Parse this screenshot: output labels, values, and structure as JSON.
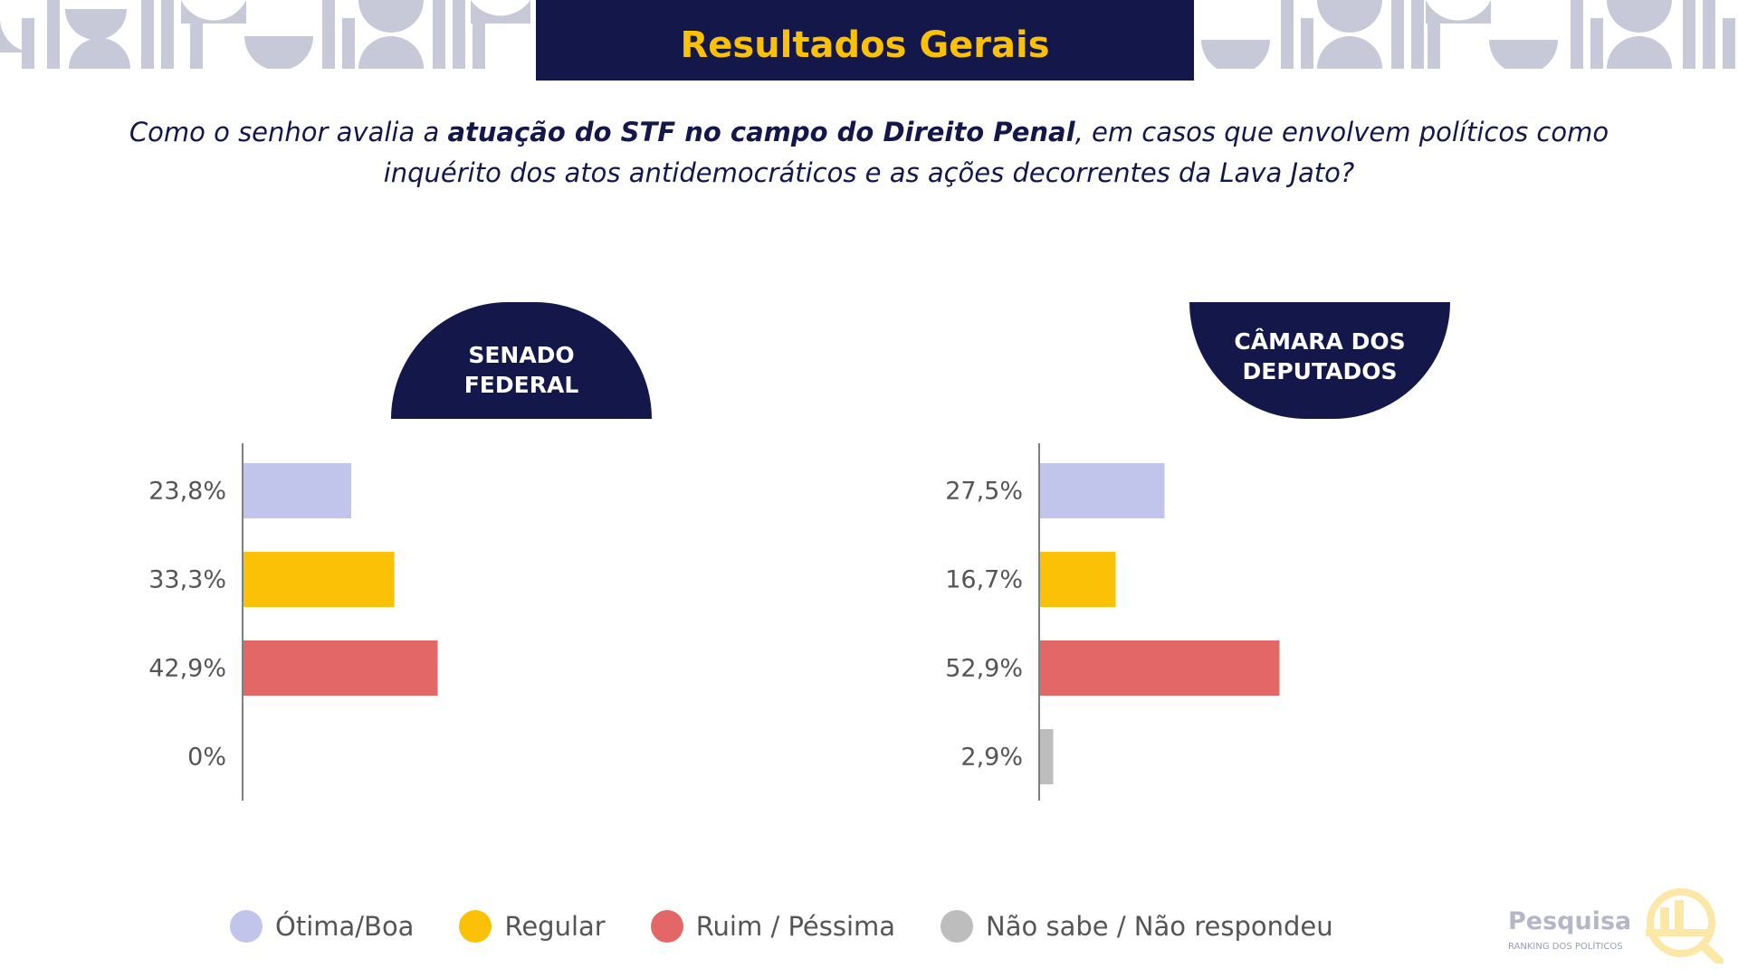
{
  "header": {
    "title": "Resultados Gerais"
  },
  "question": {
    "part1": "Como o senhor avalia a ",
    "bold": "atuação do STF no campo do Direito Penal",
    "part2": ", em casos que envolvem políticos como inquérito dos atos antidemocráticos e as ações decorrentes da Lava Jato?"
  },
  "badges": {
    "senado": {
      "line1": "SENADO",
      "line2": "FEDERAL"
    },
    "camara": {
      "line1": "CÂMARA DOS",
      "line2": "DEPUTADOS"
    }
  },
  "colors": {
    "navy": "#13174a",
    "yellow": "#fbc107",
    "lavender": "#c1c4eb",
    "red": "#e46767",
    "gray": "#bdbdbd"
  },
  "legend": [
    {
      "label": "Ótima/Boa",
      "color": "#c1c4eb"
    },
    {
      "label": "Regular",
      "color": "#fbc107"
    },
    {
      "label": "Ruim / Péssima",
      "color": "#e46767"
    },
    {
      "label": "Não sabe / Não respondeu",
      "color": "#bdbdbd"
    }
  ],
  "chart_data": [
    {
      "type": "bar",
      "orientation": "horizontal",
      "categories": [
        "Ótima/Boa",
        "Regular",
        "Ruim / Péssima",
        "Não sabe / Não respondeu"
      ],
      "values": [
        23.8,
        33.3,
        42.9,
        0
      ],
      "value_labels": [
        "23,8%",
        "33,3%",
        "42,9%",
        "0%"
      ],
      "colors": [
        "#c1c4eb",
        "#fbc107",
        "#e46767",
        "#bdbdbd"
      ],
      "xlim": [
        0,
        100
      ]
    },
    {
      "type": "bar",
      "orientation": "horizontal",
      "categories": [
        "Ótima/Boa",
        "Regular",
        "Ruim / Péssima",
        "Não sabe / Não respondeu"
      ],
      "values": [
        27.5,
        16.7,
        52.9,
        2.9
      ],
      "value_labels": [
        "27,5%",
        "16,7%",
        "52,9%",
        "2,9%"
      ],
      "colors": [
        "#c1c4eb",
        "#fbc107",
        "#e46767",
        "#bdbdbd"
      ],
      "xlim": [
        0,
        100
      ]
    }
  ],
  "logo": {
    "name": "Pesquisa",
    "sub": "RANKING DOS POLÍTICOS",
    "icon": "magnifier-chart-icon"
  }
}
